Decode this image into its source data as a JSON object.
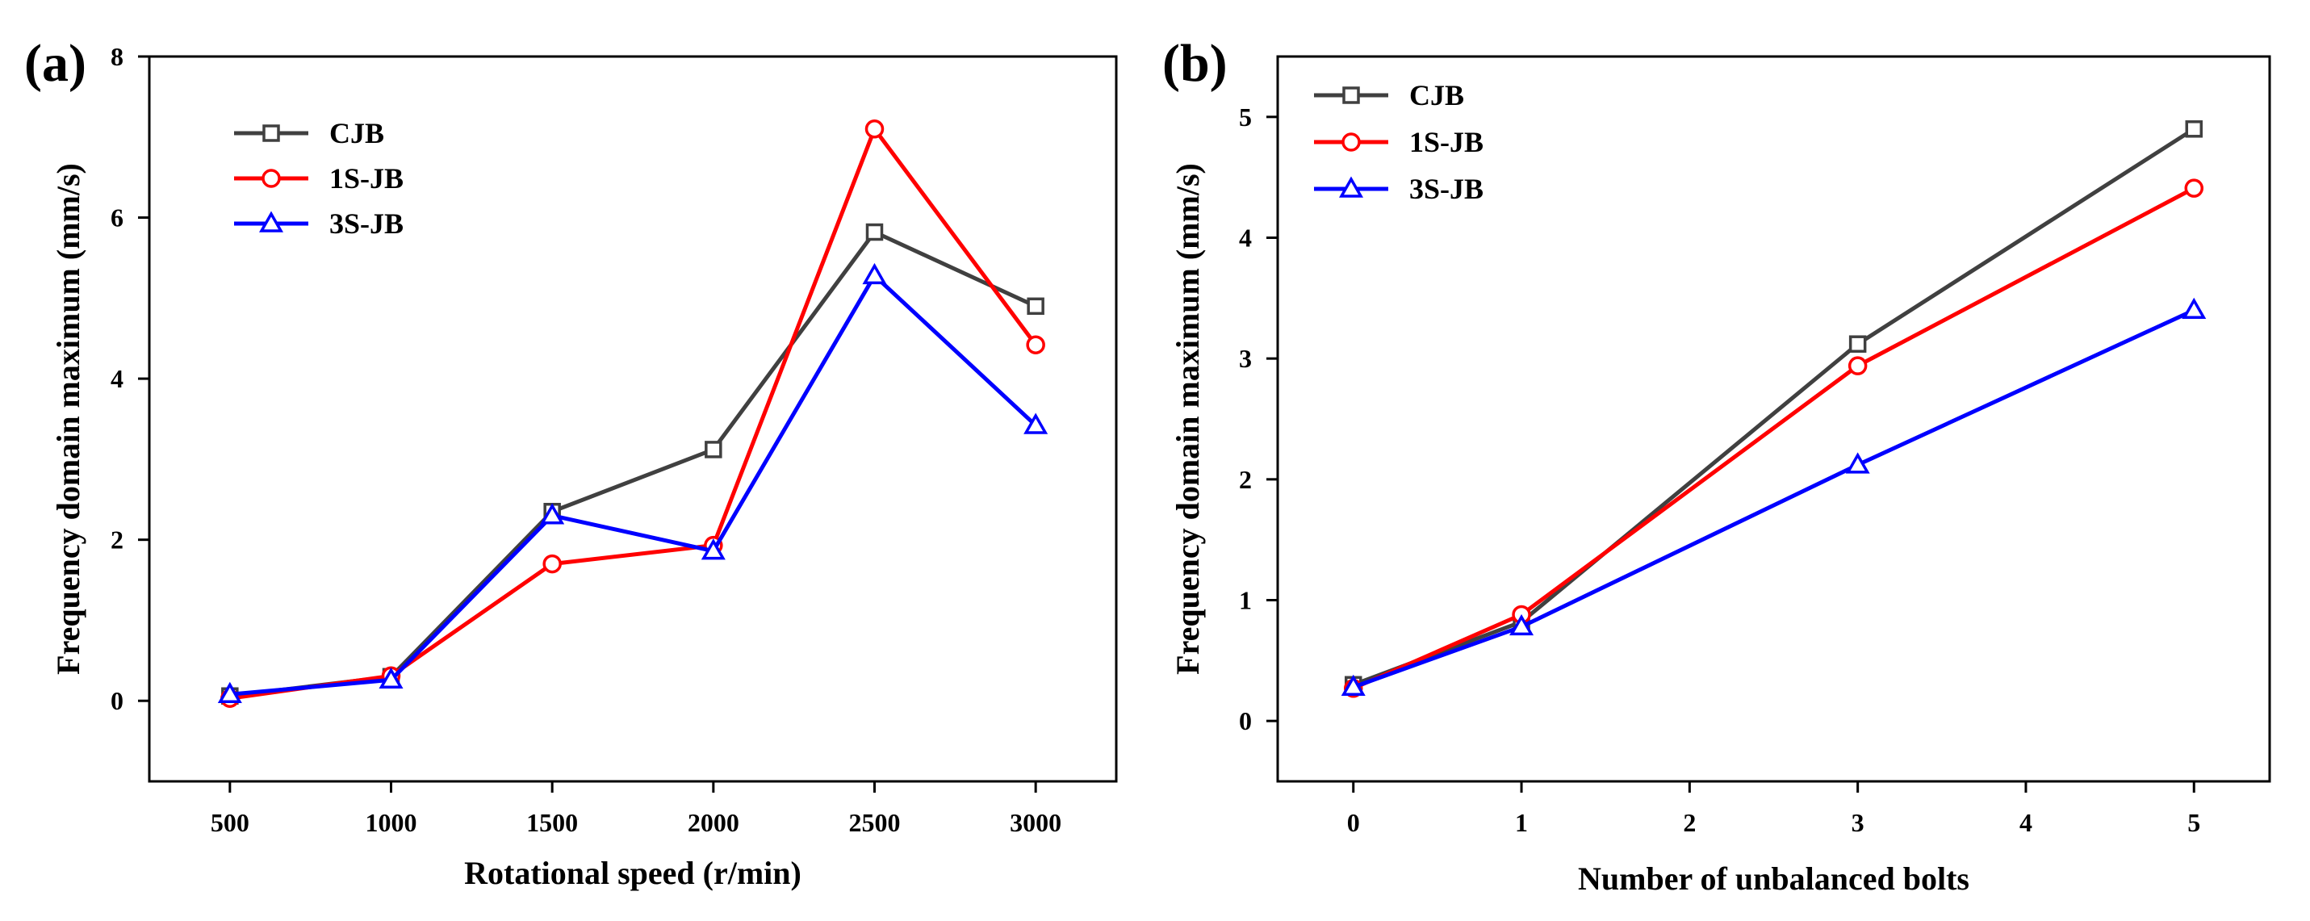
{
  "chart_data": [
    {
      "type": "line",
      "panel_label": "(a)",
      "title": "",
      "xlabel": "Rotational speed (r/min)",
      "ylabel": "Frequency domain maximum (mm/s)",
      "xlim": [
        250,
        3250
      ],
      "ylim": [
        -1,
        8
      ],
      "x_ticks": [
        500,
        1000,
        1500,
        2000,
        2500,
        3000
      ],
      "y_ticks": [
        0,
        2,
        4,
        6,
        8
      ],
      "legend_position": "top-left",
      "series": [
        {
          "name": "CJB",
          "color": "#404040",
          "marker": "square",
          "x": [
            500,
            1000,
            1500,
            2000,
            2500,
            3000
          ],
          "values": [
            0.06,
            0.3,
            2.35,
            3.12,
            5.82,
            4.9
          ]
        },
        {
          "name": "1S-JB",
          "color": "#ff0000",
          "marker": "circle",
          "x": [
            500,
            1000,
            1500,
            2000,
            2500,
            3000
          ],
          "values": [
            0.03,
            0.31,
            1.7,
            1.93,
            7.1,
            4.42
          ]
        },
        {
          "name": "3S-JB",
          "color": "#0000ff",
          "marker": "triangle",
          "x": [
            500,
            1000,
            1500,
            2000,
            2500,
            3000
          ],
          "values": [
            0.08,
            0.26,
            2.3,
            1.86,
            5.28,
            3.42
          ]
        }
      ]
    },
    {
      "type": "line",
      "panel_label": "(b)",
      "title": "",
      "xlabel": "Number of unbalanced bolts",
      "ylabel": "Frequency domain maximum (mm/s)",
      "xlim": [
        -0.45,
        5.45
      ],
      "ylim": [
        -0.5,
        5.5
      ],
      "x_ticks": [
        0,
        1,
        2,
        3,
        4,
        5
      ],
      "y_ticks": [
        0,
        1,
        2,
        3,
        4,
        5
      ],
      "legend_position": "top-left",
      "series": [
        {
          "name": "CJB",
          "color": "#404040",
          "marker": "square",
          "x": [
            0,
            1,
            3,
            5
          ],
          "values": [
            0.3,
            0.82,
            3.12,
            4.9
          ]
        },
        {
          "name": "1S-JB",
          "color": "#ff0000",
          "marker": "circle",
          "x": [
            0,
            1,
            3,
            5
          ],
          "values": [
            0.27,
            0.88,
            2.94,
            4.41
          ]
        },
        {
          "name": "3S-JB",
          "color": "#0000ff",
          "marker": "triangle",
          "x": [
            0,
            1,
            3,
            5
          ],
          "values": [
            0.28,
            0.78,
            2.12,
            3.4
          ]
        }
      ]
    }
  ]
}
